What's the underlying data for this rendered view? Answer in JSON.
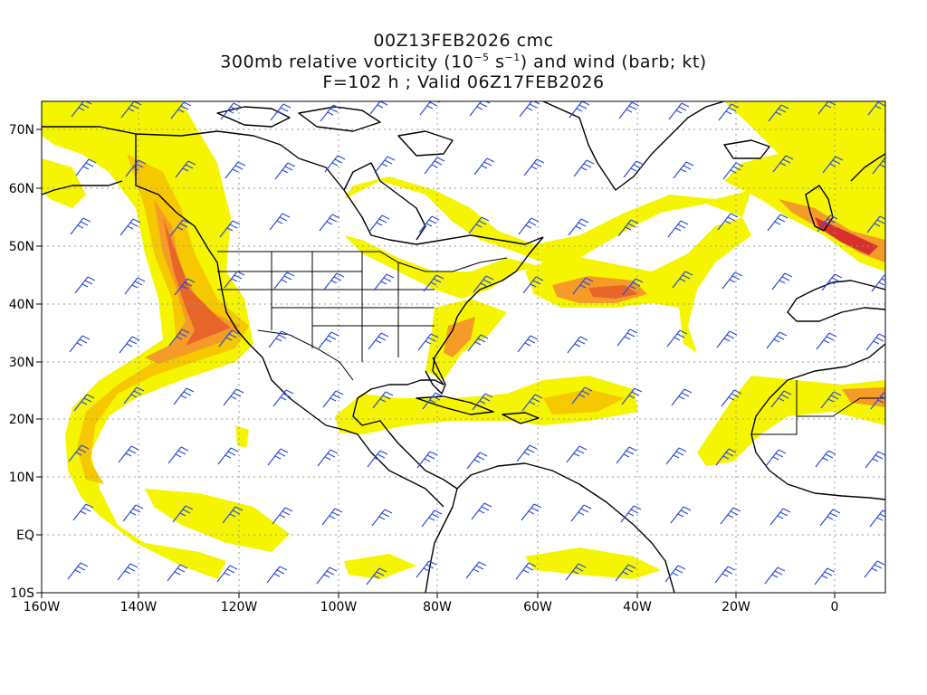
{
  "title": {
    "line1": "00Z13FEB2026 cmc",
    "line2_pre": "300mb relative vorticity (10",
    "line2_exp1": "−5",
    "line2_mid": " s",
    "line2_exp2": "−1",
    "line2_post": ") and wind (barb; kt)",
    "line3": "F=102 h ; Valid 06Z17FEB2026"
  },
  "axes": {
    "x_ticks": [
      "160W",
      "140W",
      "120W",
      "100W",
      "80W",
      "60W",
      "40W",
      "20W",
      "0"
    ],
    "y_ticks": [
      "70N",
      "60N",
      "50N",
      "40N",
      "30N",
      "20N",
      "10N",
      "EQ",
      "10S"
    ]
  },
  "colors": {
    "light_yellow": "#f5f500",
    "yellow": "#f0f060",
    "gold": "#f5c800",
    "orange": "#f59b28",
    "dark_orange": "#e8652a",
    "red": "#d8302a",
    "barb": "#2b4cd8",
    "coast": "#000000",
    "grid": "#9a9a9a"
  }
}
